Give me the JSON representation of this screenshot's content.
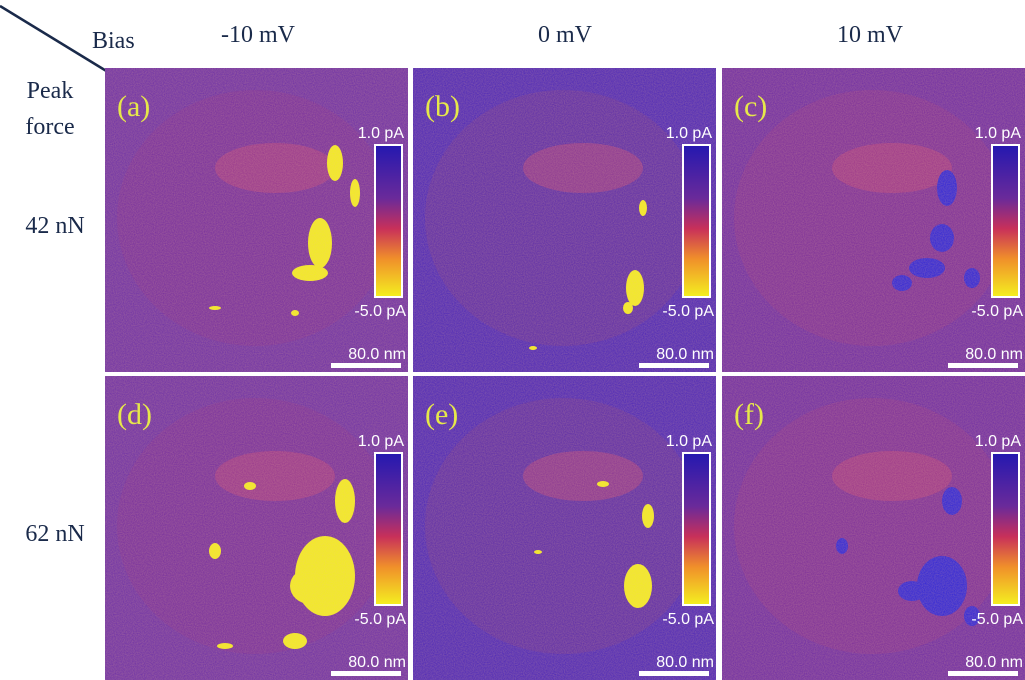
{
  "corner": {
    "column_header": "Bias",
    "row_header_top": "Peak",
    "row_header_bottom": "force"
  },
  "columns": [
    "-10 mV",
    "0 mV",
    "10 mV"
  ],
  "rows": [
    "42 nN",
    "62 nN"
  ],
  "panels": [
    {
      "label": "(a)",
      "colorbar_max": "1.0 pA",
      "colorbar_min": "-5.0 pA",
      "scale_bar": "80.0 nm"
    },
    {
      "label": "(b)",
      "colorbar_max": "1.0 pA",
      "colorbar_min": "-5.0 pA",
      "scale_bar": "80.0 nm"
    },
    {
      "label": "(c)",
      "colorbar_max": "1.0 pA",
      "colorbar_min": "-5.0 pA",
      "scale_bar": "80.0 nm"
    },
    {
      "label": "(d)",
      "colorbar_max": "1.0 pA",
      "colorbar_min": "-5.0 pA",
      "scale_bar": "80.0 nm"
    },
    {
      "label": "(e)",
      "colorbar_max": "1.0 pA",
      "colorbar_min": "-5.0 pA",
      "scale_bar": "80.0 nm"
    },
    {
      "label": "(f)",
      "colorbar_max": "1.0 pA",
      "colorbar_min": "-5.0 pA",
      "scale_bar": "80.0 nm"
    }
  ]
}
